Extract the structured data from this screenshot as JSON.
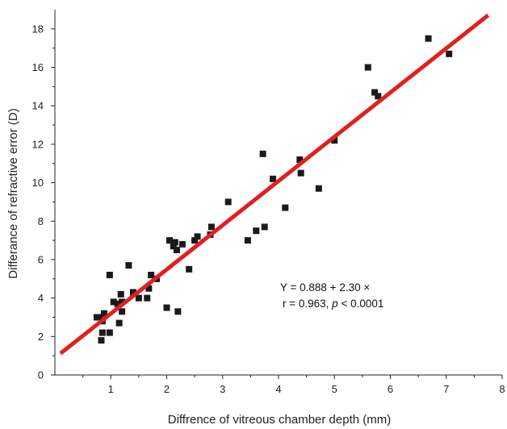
{
  "chart_data": {
    "type": "scatter",
    "title": "",
    "xlabel": "Diffrence of vitreous chamber depth (mm)",
    "ylabel": "Differance of refractive error (D)",
    "xlim": [
      0,
      8
    ],
    "ylim": [
      0,
      19
    ],
    "x_ticks": [
      1,
      2,
      3,
      4,
      5,
      6,
      7,
      8
    ],
    "y_ticks": [
      0,
      2,
      4,
      6,
      8,
      10,
      12,
      14,
      16,
      18
    ],
    "grid": false,
    "legend": "none",
    "marker_color": "#1a1a1a",
    "line_color": "#e02020",
    "points": [
      [
        0.75,
        3.0
      ],
      [
        0.8,
        3.0
      ],
      [
        0.85,
        2.8
      ],
      [
        0.88,
        3.2
      ],
      [
        0.85,
        2.2
      ],
      [
        0.83,
        1.8
      ],
      [
        0.98,
        5.2
      ],
      [
        0.98,
        2.2
      ],
      [
        1.05,
        3.8
      ],
      [
        1.12,
        3.7
      ],
      [
        1.15,
        2.7
      ],
      [
        1.18,
        4.2
      ],
      [
        1.2,
        3.8
      ],
      [
        1.2,
        3.3
      ],
      [
        1.32,
        5.7
      ],
      [
        1.4,
        4.3
      ],
      [
        1.5,
        4.0
      ],
      [
        1.65,
        4.0
      ],
      [
        1.68,
        4.5
      ],
      [
        1.72,
        5.2
      ],
      [
        1.82,
        5.0
      ],
      [
        2.0,
        3.5
      ],
      [
        2.05,
        7.0
      ],
      [
        2.12,
        6.7
      ],
      [
        2.15,
        6.9
      ],
      [
        2.18,
        6.5
      ],
      [
        2.2,
        3.3
      ],
      [
        2.28,
        6.8
      ],
      [
        2.4,
        5.5
      ],
      [
        2.5,
        7.0
      ],
      [
        2.55,
        7.2
      ],
      [
        2.78,
        7.3
      ],
      [
        2.8,
        7.7
      ],
      [
        3.1,
        9.0
      ],
      [
        3.45,
        7.0
      ],
      [
        3.6,
        7.5
      ],
      [
        3.72,
        11.5
      ],
      [
        3.75,
        7.7
      ],
      [
        3.9,
        10.2
      ],
      [
        4.12,
        8.7
      ],
      [
        4.38,
        11.2
      ],
      [
        4.4,
        10.5
      ],
      [
        4.72,
        9.7
      ],
      [
        5.0,
        12.2
      ],
      [
        5.6,
        16.0
      ],
      [
        5.72,
        14.7
      ],
      [
        5.78,
        14.5
      ],
      [
        6.68,
        17.5
      ],
      [
        7.05,
        16.7
      ]
    ],
    "fit": {
      "intercept": 0.888,
      "slope": 2.3,
      "x_range": [
        0.1,
        7.75
      ]
    },
    "annotation": {
      "equation": "Y = 0.888 + 2.30 ×",
      "stats_prefix": "r = 0.963, ",
      "stats_italic": "p",
      "stats_suffix": " < 0.0001"
    }
  }
}
